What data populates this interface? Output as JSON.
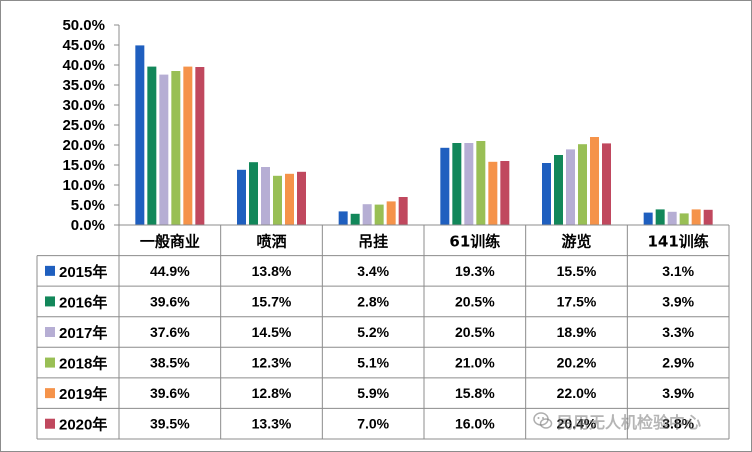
{
  "chart_data": {
    "type": "bar",
    "categories": [
      "一般商业",
      "喷洒",
      "吊挂",
      "61训练",
      "游览",
      "141训练"
    ],
    "series": [
      {
        "name": "2015年",
        "color": "#1f5fbf",
        "values": [
          44.9,
          13.8,
          3.4,
          19.3,
          15.5,
          3.1
        ],
        "labels": [
          "44.9%",
          "13.8%",
          "3.4%",
          "19.3%",
          "15.5%",
          "3.1%"
        ]
      },
      {
        "name": "2016年",
        "color": "#12875a",
        "values": [
          39.6,
          15.7,
          2.8,
          20.5,
          17.5,
          3.9
        ],
        "labels": [
          "39.6%",
          "15.7%",
          "2.8%",
          "20.5%",
          "17.5%",
          "3.9%"
        ]
      },
      {
        "name": "2017年",
        "color": "#b6aed4",
        "values": [
          37.6,
          14.5,
          5.2,
          20.5,
          18.9,
          3.3
        ],
        "labels": [
          "37.6%",
          "14.5%",
          "5.2%",
          "20.5%",
          "18.9%",
          "3.3%"
        ]
      },
      {
        "name": "2018年",
        "color": "#99bf55",
        "values": [
          38.5,
          12.3,
          5.1,
          21.0,
          20.2,
          2.9
        ],
        "labels": [
          "38.5%",
          "12.3%",
          "5.1%",
          "21.0%",
          "20.2%",
          "2.9%"
        ]
      },
      {
        "name": "2019年",
        "color": "#f5934a",
        "values": [
          39.6,
          12.8,
          5.9,
          15.8,
          22.0,
          3.9
        ],
        "labels": [
          "39.6%",
          "12.8%",
          "5.9%",
          "15.8%",
          "22.0%",
          "3.9%"
        ]
      },
      {
        "name": "2020年",
        "color": "#c0485e",
        "values": [
          39.5,
          13.3,
          7.0,
          16.0,
          20.4,
          3.8
        ],
        "labels": [
          "39.5%",
          "13.3%",
          "7.0%",
          "16.0%",
          "20.4%",
          "3.8%"
        ]
      }
    ],
    "yticks": [
      "0.0%",
      "5.0%",
      "10.0%",
      "15.0%",
      "20.0%",
      "25.0%",
      "30.0%",
      "35.0%",
      "40.0%",
      "45.0%",
      "50.0%"
    ],
    "ylim": [
      0,
      50
    ],
    "grid": false,
    "legend": "data-table"
  },
  "watermark": {
    "text": "民用无人机检验中心",
    "icon": "wechat-icon"
  }
}
